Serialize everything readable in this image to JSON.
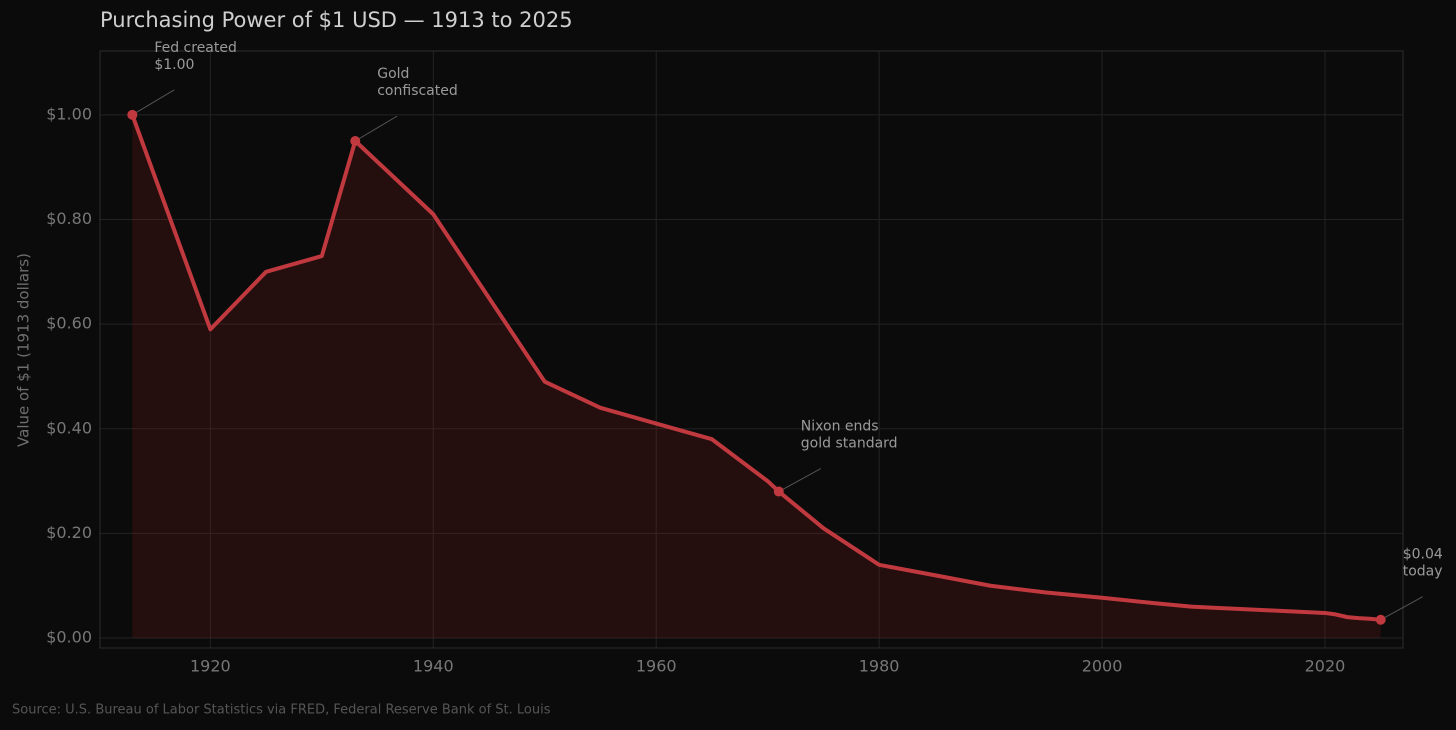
{
  "chart_data": {
    "type": "line",
    "title": "Purchasing Power of $1 USD — 1913 to 2025",
    "y_label": "Value of $1 (1913 dollars)",
    "source": "Source: U.S. Bureau of Labor Statistics via FRED, Federal Reserve Bank of St. Louis",
    "x": [
      1913,
      1920,
      1925,
      1930,
      1933,
      1940,
      1950,
      1955,
      1960,
      1965,
      1970,
      1971,
      1975,
      1980,
      1985,
      1990,
      1995,
      2000,
      2005,
      2008,
      2010,
      2015,
      2020,
      2021,
      2022,
      2023,
      2024,
      2025
    ],
    "series": [
      {
        "color": "#c0393f",
        "values": [
          1.0,
          0.59,
          0.7,
          0.73,
          0.95,
          0.81,
          0.49,
          0.44,
          0.41,
          0.38,
          0.3,
          0.28,
          0.21,
          0.14,
          0.12,
          0.1,
          0.087,
          0.077,
          0.066,
          0.06,
          0.058,
          0.053,
          0.048,
          0.045,
          0.04,
          0.038,
          0.037,
          0.035
        ]
      }
    ],
    "annotations": [
      {
        "x": 1913,
        "y": 1.0,
        "lines": [
          "Fed created",
          "$1.00"
        ]
      },
      {
        "x": 1933,
        "y": 0.95,
        "lines": [
          "Gold",
          "confiscated"
        ]
      },
      {
        "x": 1971,
        "y": 0.28,
        "lines": [
          "Nixon ends",
          "gold standard"
        ]
      },
      {
        "x": 2025,
        "y": 0.035,
        "lines": [
          "$0.04",
          "today"
        ]
      }
    ],
    "xlim": [
      1910.1,
      2027
    ],
    "ylim": [
      -0.019,
      1.122
    ],
    "xticks": [
      1920,
      1940,
      1960,
      1980,
      2000,
      2020
    ],
    "yticks": [
      {
        "value": 0,
        "label": "$0.00"
      },
      {
        "value": 0.2,
        "label": "$0.20"
      },
      {
        "value": 0.4,
        "label": "$0.40"
      },
      {
        "value": 0.6,
        "label": "$0.60"
      },
      {
        "value": 0.8,
        "label": "$0.80"
      },
      {
        "value": 1.0,
        "label": "$1.00"
      }
    ],
    "grid": true
  }
}
